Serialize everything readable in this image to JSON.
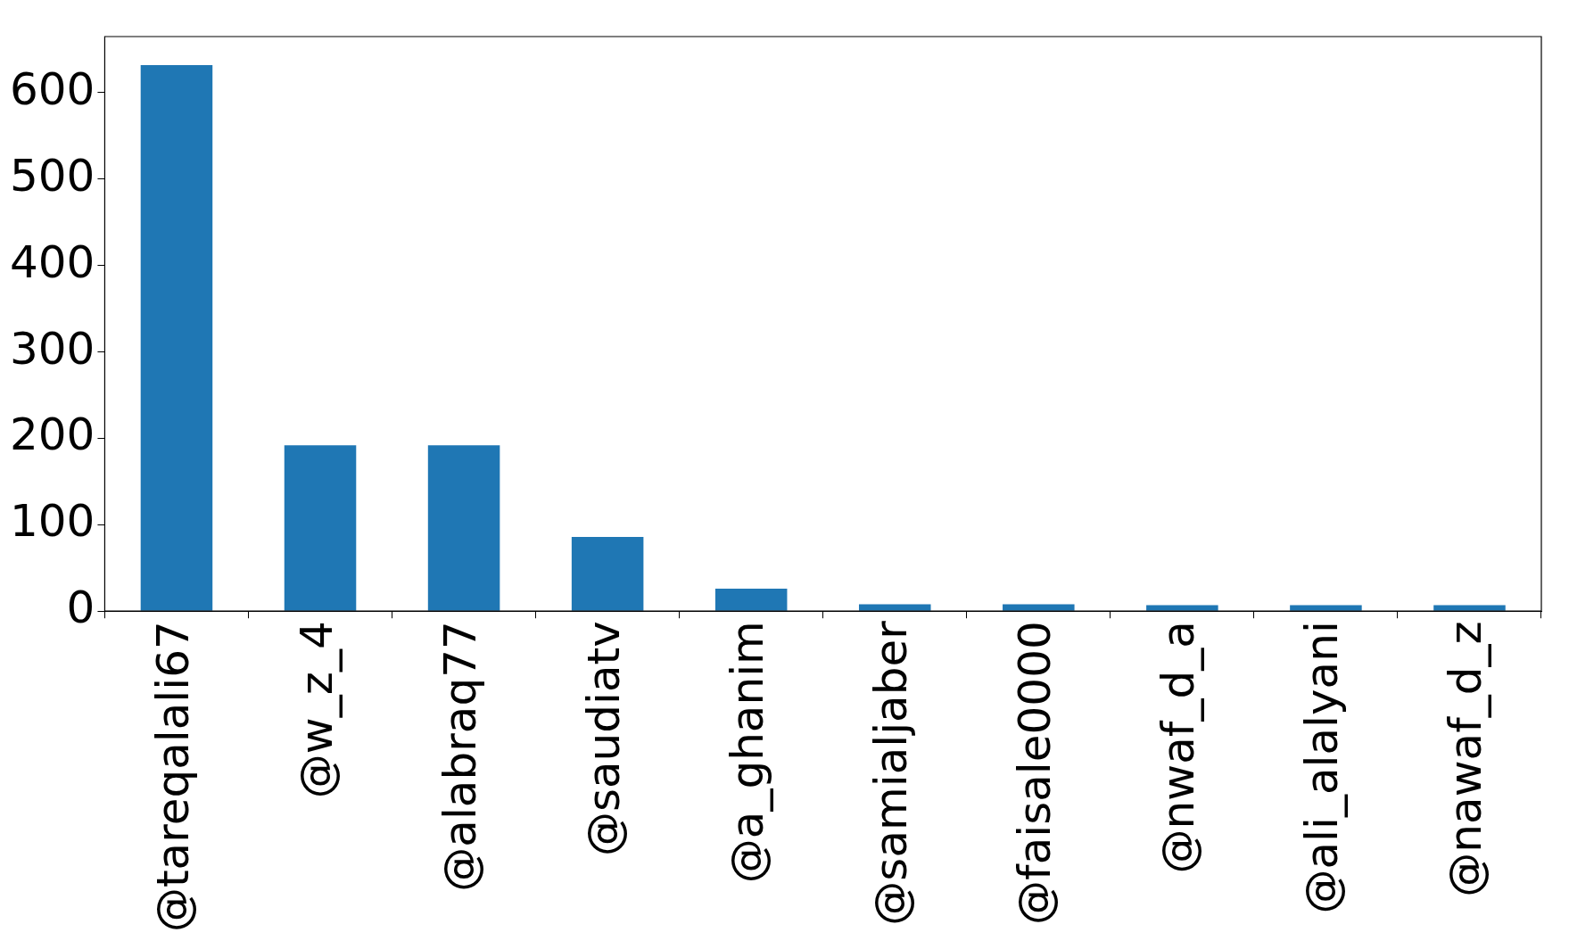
{
  "chart_data": {
    "type": "bar",
    "categories": [
      "@tareqalali67",
      "@w_z_4",
      "@alabraq77",
      "@saudiatv",
      "@a_ghanim",
      "@samialjaber",
      "@faisale0000",
      "@nwaf_d_a",
      "@ali_alalyani",
      "@nawaf_d_z"
    ],
    "values": [
      632,
      192,
      192,
      86,
      26,
      8,
      8,
      7,
      7,
      7
    ],
    "color": "#1f77b4",
    "ylim": [
      0,
      665
    ],
    "yticks": [
      0,
      100,
      200,
      300,
      400,
      500,
      600
    ],
    "grid": false,
    "legend": false
  }
}
